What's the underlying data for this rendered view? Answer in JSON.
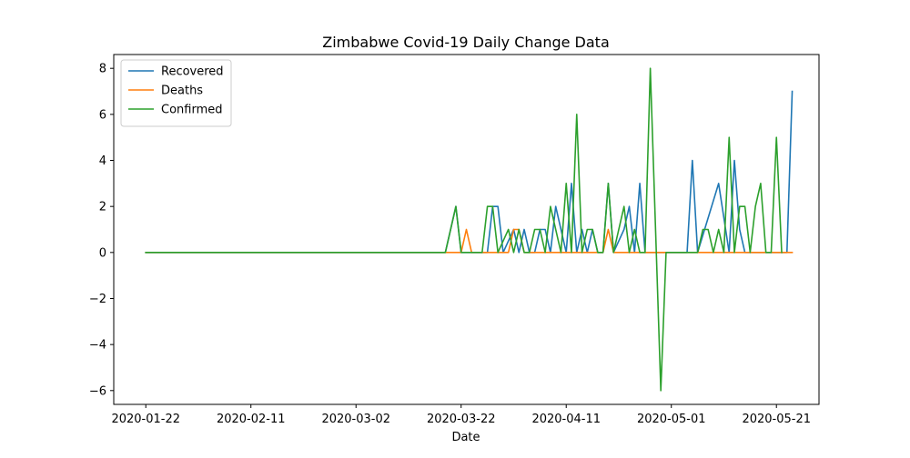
{
  "chart_data": {
    "type": "line",
    "title": "Zimbabwe Covid-19 Daily Change Data",
    "xlabel": "Date",
    "ylabel": "",
    "legend_position": "top-left",
    "grid": false,
    "ylim": [
      -6.6,
      8.6
    ],
    "yticks": [
      -6,
      -4,
      -2,
      0,
      2,
      4,
      6,
      8
    ],
    "x_start": "2020-01-22",
    "x_end": "2020-05-23",
    "xticks": [
      "2020-01-22",
      "2020-02-11",
      "2020-03-02",
      "2020-03-22",
      "2020-04-11",
      "2020-05-01",
      "2020-05-21"
    ],
    "series": [
      {
        "name": "Recovered",
        "color": "#1f77b4",
        "points": [
          [
            "2020-01-22",
            0
          ],
          [
            "2020-03-19",
            0
          ],
          [
            "2020-03-21",
            2
          ],
          [
            "2020-03-22",
            0
          ],
          [
            "2020-03-27",
            0
          ],
          [
            "2020-03-28",
            2
          ],
          [
            "2020-03-29",
            2
          ],
          [
            "2020-03-30",
            0
          ],
          [
            "2020-04-01",
            1
          ],
          [
            "2020-04-02",
            0
          ],
          [
            "2020-04-03",
            1
          ],
          [
            "2020-04-04",
            0
          ],
          [
            "2020-04-05",
            0
          ],
          [
            "2020-04-06",
            1
          ],
          [
            "2020-04-07",
            1
          ],
          [
            "2020-04-08",
            0
          ],
          [
            "2020-04-09",
            2
          ],
          [
            "2020-04-11",
            0
          ],
          [
            "2020-04-12",
            3
          ],
          [
            "2020-04-13",
            0
          ],
          [
            "2020-04-14",
            1
          ],
          [
            "2020-04-15",
            0
          ],
          [
            "2020-04-16",
            1
          ],
          [
            "2020-04-17",
            0
          ],
          [
            "2020-04-18",
            0
          ],
          [
            "2020-04-19",
            3
          ],
          [
            "2020-04-20",
            0
          ],
          [
            "2020-04-22",
            1
          ],
          [
            "2020-04-23",
            2
          ],
          [
            "2020-04-24",
            0
          ],
          [
            "2020-04-25",
            3
          ],
          [
            "2020-04-26",
            0
          ],
          [
            "2020-05-04",
            0
          ],
          [
            "2020-05-05",
            4
          ],
          [
            "2020-05-06",
            0
          ],
          [
            "2020-05-10",
            3
          ],
          [
            "2020-05-12",
            0
          ],
          [
            "2020-05-13",
            4
          ],
          [
            "2020-05-14",
            1
          ],
          [
            "2020-05-15",
            0
          ],
          [
            "2020-05-23",
            0
          ],
          [
            "2020-05-24",
            7
          ]
        ]
      },
      {
        "name": "Deaths",
        "color": "#ff7f0e",
        "points": [
          [
            "2020-01-22",
            0
          ],
          [
            "2020-03-22",
            0
          ],
          [
            "2020-03-23",
            1
          ],
          [
            "2020-03-24",
            0
          ],
          [
            "2020-03-31",
            0
          ],
          [
            "2020-04-01",
            1
          ],
          [
            "2020-04-02",
            1
          ],
          [
            "2020-04-03",
            0
          ],
          [
            "2020-04-18",
            0
          ],
          [
            "2020-04-19",
            1
          ],
          [
            "2020-04-20",
            0
          ],
          [
            "2020-05-24",
            0
          ]
        ]
      },
      {
        "name": "Confirmed",
        "color": "#2ca02c",
        "points": [
          [
            "2020-01-22",
            0
          ],
          [
            "2020-03-19",
            0
          ],
          [
            "2020-03-21",
            2
          ],
          [
            "2020-03-22",
            0
          ],
          [
            "2020-03-26",
            0
          ],
          [
            "2020-03-27",
            2
          ],
          [
            "2020-03-28",
            2
          ],
          [
            "2020-03-29",
            0
          ],
          [
            "2020-03-31",
            1
          ],
          [
            "2020-04-01",
            0
          ],
          [
            "2020-04-02",
            1
          ],
          [
            "2020-04-03",
            0
          ],
          [
            "2020-04-04",
            0
          ],
          [
            "2020-04-05",
            1
          ],
          [
            "2020-04-06",
            1
          ],
          [
            "2020-04-07",
            0
          ],
          [
            "2020-04-08",
            2
          ],
          [
            "2020-04-10",
            0
          ],
          [
            "2020-04-11",
            3
          ],
          [
            "2020-04-12",
            0
          ],
          [
            "2020-04-13",
            6
          ],
          [
            "2020-04-14",
            0
          ],
          [
            "2020-04-15",
            1
          ],
          [
            "2020-04-16",
            1
          ],
          [
            "2020-04-17",
            0
          ],
          [
            "2020-04-18",
            0
          ],
          [
            "2020-04-19",
            3
          ],
          [
            "2020-04-20",
            0
          ],
          [
            "2020-04-22",
            2
          ],
          [
            "2020-04-23",
            0
          ],
          [
            "2020-04-24",
            1
          ],
          [
            "2020-04-25",
            0
          ],
          [
            "2020-04-26",
            0
          ],
          [
            "2020-04-27",
            8
          ],
          [
            "2020-04-29",
            -6
          ],
          [
            "2020-04-30",
            0
          ],
          [
            "2020-05-06",
            0
          ],
          [
            "2020-05-07",
            1
          ],
          [
            "2020-05-08",
            1
          ],
          [
            "2020-05-09",
            0
          ],
          [
            "2020-05-10",
            1
          ],
          [
            "2020-05-11",
            0
          ],
          [
            "2020-05-12",
            5
          ],
          [
            "2020-05-13",
            0
          ],
          [
            "2020-05-14",
            2
          ],
          [
            "2020-05-15",
            2
          ],
          [
            "2020-05-16",
            0
          ],
          [
            "2020-05-17",
            2
          ],
          [
            "2020-05-18",
            3
          ],
          [
            "2020-05-19",
            0
          ],
          [
            "2020-05-20",
            0
          ],
          [
            "2020-05-21",
            5
          ],
          [
            "2020-05-22",
            0
          ]
        ]
      }
    ]
  }
}
